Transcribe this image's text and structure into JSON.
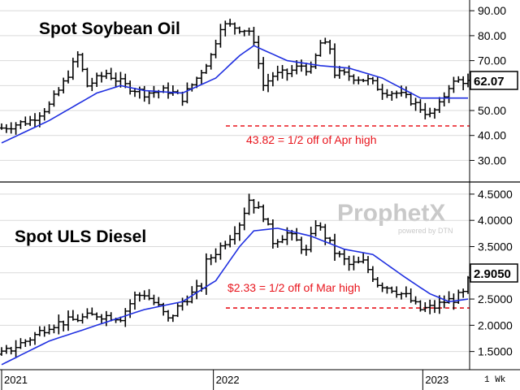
{
  "watermark": {
    "brand": "ProphetX",
    "tagline": "powered by DTN"
  },
  "frequency_label": "1 Wk",
  "chart_data": [
    {
      "type": "ohlc",
      "title": "Spot Soybean Oil",
      "ylim": [
        22,
        93
      ],
      "y_ticks": [
        "90.00",
        "80.00",
        "70.00",
        "60.00",
        "50.00",
        "40.00",
        "30.00"
      ],
      "y_tick_values": [
        90,
        80,
        70,
        60,
        50,
        40,
        30
      ],
      "last_value": "62.07",
      "last_value_num": 62.07,
      "reference_line": {
        "value": 43.82,
        "label": "43.82 = 1/2 off of Apr high",
        "color": "#e8141c"
      },
      "moving_average_color": "#1f2fe0",
      "price_keypoints": [
        [
          0,
          43
        ],
        [
          6,
          46
        ],
        [
          10,
          52
        ],
        [
          13,
          61
        ],
        [
          16,
          72
        ],
        [
          18,
          60
        ],
        [
          22,
          65
        ],
        [
          26,
          60
        ],
        [
          30,
          57
        ],
        [
          35,
          58
        ],
        [
          38,
          55
        ],
        [
          41,
          63
        ],
        [
          44,
          72
        ],
        [
          46,
          84
        ],
        [
          48,
          84
        ],
        [
          52,
          82
        ],
        [
          54,
          70
        ],
        [
          55,
          60
        ],
        [
          57,
          64
        ],
        [
          60,
          65
        ],
        [
          63,
          68
        ],
        [
          65,
          66
        ],
        [
          67,
          77
        ],
        [
          69,
          75
        ],
        [
          70,
          65
        ],
        [
          73,
          64
        ],
        [
          77,
          62
        ],
        [
          80,
          58
        ],
        [
          83,
          57
        ],
        [
          86,
          54
        ],
        [
          88,
          51
        ],
        [
          90,
          48
        ],
        [
          92,
          52
        ],
        [
          94,
          60
        ],
        [
          96,
          62
        ],
        [
          98,
          62
        ]
      ],
      "ma_keypoints": [
        [
          0,
          37
        ],
        [
          10,
          46
        ],
        [
          20,
          57
        ],
        [
          25,
          60
        ],
        [
          30,
          58
        ],
        [
          38,
          57
        ],
        [
          45,
          63
        ],
        [
          50,
          72
        ],
        [
          53,
          76
        ],
        [
          60,
          70
        ],
        [
          67,
          68
        ],
        [
          73,
          67
        ],
        [
          80,
          63
        ],
        [
          85,
          58
        ],
        [
          88,
          55
        ],
        [
          90,
          55
        ],
        [
          98,
          55
        ]
      ]
    },
    {
      "type": "ohlc",
      "title": "Spot ULS Diesel",
      "ylim": [
        1.2,
        4.7
      ],
      "y_ticks": [
        "4.5000",
        "4.0000",
        "3.5000",
        "3.0000",
        "2.5000",
        "2.0000",
        "1.5000"
      ],
      "y_tick_values": [
        4.5,
        4.0,
        3.5,
        3.0,
        2.5,
        2.0,
        1.5
      ],
      "last_value": "2.9050",
      "last_value_num": 2.905,
      "reference_line": {
        "value": 2.33,
        "label": "$2.33 = 1/2 off of Mar high",
        "color": "#e8141c"
      },
      "moving_average_color": "#1f2fe0",
      "price_keypoints": [
        [
          0,
          1.45
        ],
        [
          6,
          1.75
        ],
        [
          10,
          2.0
        ],
        [
          15,
          2.1
        ],
        [
          20,
          2.2
        ],
        [
          25,
          2.15
        ],
        [
          28,
          2.55
        ],
        [
          30,
          2.6
        ],
        [
          33,
          2.35
        ],
        [
          35,
          2.1
        ],
        [
          38,
          2.45
        ],
        [
          40,
          2.6
        ],
        [
          42,
          2.75
        ],
        [
          43,
          3.2
        ],
        [
          46,
          3.5
        ],
        [
          48,
          3.7
        ],
        [
          50,
          3.95
        ],
        [
          52,
          4.4
        ],
        [
          55,
          4.1
        ],
        [
          57,
          3.6
        ],
        [
          60,
          3.75
        ],
        [
          62,
          3.6
        ],
        [
          64,
          3.4
        ],
        [
          66,
          3.95
        ],
        [
          68,
          3.7
        ],
        [
          70,
          3.4
        ],
        [
          73,
          3.15
        ],
        [
          76,
          3.2
        ],
        [
          79,
          2.8
        ],
        [
          82,
          2.7
        ],
        [
          85,
          2.55
        ],
        [
          88,
          2.3
        ],
        [
          91,
          2.35
        ],
        [
          93,
          2.45
        ],
        [
          95,
          2.5
        ],
        [
          97,
          2.6
        ],
        [
          98,
          2.9
        ]
      ],
      "ma_keypoints": [
        [
          0,
          1.25
        ],
        [
          10,
          1.7
        ],
        [
          20,
          2.0
        ],
        [
          30,
          2.3
        ],
        [
          38,
          2.45
        ],
        [
          45,
          2.85
        ],
        [
          50,
          3.5
        ],
        [
          53,
          3.8
        ],
        [
          58,
          3.85
        ],
        [
          65,
          3.7
        ],
        [
          72,
          3.45
        ],
        [
          78,
          3.35
        ],
        [
          85,
          2.9
        ],
        [
          90,
          2.6
        ],
        [
          94,
          2.45
        ],
        [
          98,
          2.5
        ]
      ]
    }
  ],
  "x_axis": {
    "labels": [
      "2021",
      "2022",
      "2023"
    ],
    "positions": [
      0,
      44.5,
      88.5
    ]
  }
}
